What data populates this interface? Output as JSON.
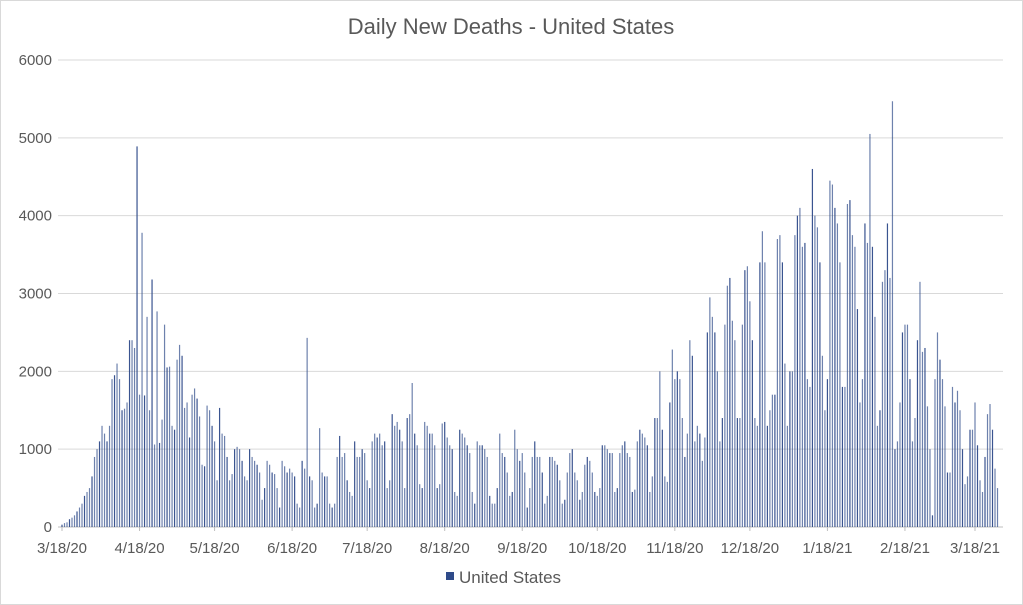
{
  "chart_data": {
    "type": "bar",
    "title": "Daily New Deaths - United States",
    "xlabel": "",
    "ylabel": "",
    "ylim": [
      0,
      6000
    ],
    "yticks": [
      "0",
      "1000",
      "2000",
      "3000",
      "4000",
      "5000",
      "6000"
    ],
    "grid": true,
    "legend_position": "bottom",
    "start_date": "3/18/20",
    "xtick_labels": [
      {
        "label": "3/18/20",
        "day": 0
      },
      {
        "label": "4/18/20",
        "day": 31
      },
      {
        "label": "5/18/20",
        "day": 61
      },
      {
        "label": "6/18/20",
        "day": 92
      },
      {
        "label": "7/18/20",
        "day": 122
      },
      {
        "label": "8/18/20",
        "day": 153
      },
      {
        "label": "9/18/20",
        "day": 184
      },
      {
        "label": "10/18/20",
        "day": 214
      },
      {
        "label": "11/18/20",
        "day": 245
      },
      {
        "label": "12/18/20",
        "day": 275
      },
      {
        "label": "1/18/21",
        "day": 306
      },
      {
        "label": "2/18/21",
        "day": 337
      },
      {
        "label": "3/18/21",
        "day": 365
      }
    ],
    "series": [
      {
        "name": "United States",
        "color": "#2f4b8a",
        "values": [
          30,
          50,
          60,
          100,
          120,
          150,
          200,
          250,
          300,
          400,
          450,
          500,
          650,
          900,
          1000,
          1100,
          1300,
          1200,
          1100,
          1300,
          1900,
          1950,
          2100,
          1900,
          1500,
          1520,
          1600,
          2400,
          2400,
          2300,
          4890,
          1700,
          3780,
          1690,
          2700,
          1500,
          3180,
          1060,
          2770,
          1080,
          1380,
          2600,
          2050,
          2060,
          1300,
          1250,
          2150,
          2340,
          2200,
          1530,
          1600,
          1150,
          1700,
          1780,
          1650,
          1420,
          800,
          780,
          1560,
          1500,
          1300,
          1100,
          600,
          1530,
          1200,
          1170,
          900,
          600,
          680,
          1000,
          1030,
          1000,
          850,
          650,
          600,
          1000,
          900,
          850,
          800,
          700,
          350,
          500,
          850,
          800,
          700,
          680,
          500,
          250,
          850,
          780,
          700,
          750,
          700,
          650,
          300,
          250,
          850,
          750,
          2430,
          650,
          600,
          250,
          300,
          1270,
          700,
          650,
          650,
          300,
          250,
          300,
          900,
          1170,
          900,
          950,
          600,
          450,
          400,
          1100,
          900,
          900,
          1000,
          950,
          600,
          500,
          1100,
          1200,
          1150,
          1200,
          1050,
          1100,
          500,
          600,
          1450,
          1300,
          1350,
          1250,
          1100,
          500,
          1400,
          1450,
          1850,
          1200,
          1050,
          550,
          500,
          1350,
          1300,
          1200,
          1200,
          1050,
          500,
          550,
          1330,
          1350,
          1150,
          1050,
          1000,
          450,
          400,
          1250,
          1200,
          1150,
          1050,
          950,
          450,
          300,
          1100,
          1050,
          1050,
          1000,
          900,
          400,
          300,
          300,
          500,
          1200,
          950,
          900,
          700,
          400,
          450,
          1250,
          1000,
          850,
          950,
          700,
          250,
          500,
          900,
          1100,
          900,
          900,
          700,
          300,
          400,
          900,
          900,
          850,
          800,
          600,
          300,
          350,
          700,
          950,
          1000,
          700,
          600,
          350,
          450,
          800,
          900,
          850,
          700,
          450,
          400,
          500,
          1050,
          1050,
          1000,
          950,
          950,
          450,
          500,
          950,
          1050,
          1100,
          950,
          900,
          450,
          480,
          1100,
          1250,
          1200,
          1150,
          1050,
          450,
          650,
          1400,
          1400,
          2000,
          1250,
          650,
          580,
          1600,
          2280,
          1900,
          2000,
          1900,
          1400,
          900,
          1200,
          2400,
          2200,
          1100,
          1300,
          1200,
          850,
          1150,
          2500,
          2950,
          2700,
          2500,
          2000,
          1100,
          1400,
          2600,
          3100,
          3200,
          2650,
          2400,
          1400,
          1400,
          2600,
          3300,
          3350,
          2900,
          2400,
          1400,
          1300,
          3400,
          3800,
          3400,
          1300,
          1500,
          1700,
          1700,
          3700,
          3750,
          3400,
          2100,
          1300,
          2000,
          2000,
          3750,
          4000,
          4100,
          3600,
          3650,
          1900,
          1800,
          4600,
          4000,
          3850,
          3400,
          2200,
          1500,
          1900,
          4450,
          4400,
          4100,
          3900,
          3400,
          1800,
          1800,
          4150,
          4200,
          3750,
          3600,
          2800,
          1600,
          1900,
          3900,
          3650,
          5050,
          3600,
          2700,
          1300,
          1500,
          3150,
          3300,
          3900,
          3200,
          5470,
          1000,
          1100,
          1600,
          2500,
          2600,
          2600,
          1900,
          1100,
          1400,
          2400,
          3150,
          2250,
          2300,
          1550,
          1000,
          150,
          1900,
          2500,
          2150,
          1900,
          1550,
          700,
          700,
          1800,
          1600,
          1750,
          1500,
          1000,
          550,
          650,
          1250,
          1250,
          1600,
          1050,
          600,
          450,
          900,
          1450,
          1580,
          1250,
          750,
          500
        ]
      }
    ]
  }
}
